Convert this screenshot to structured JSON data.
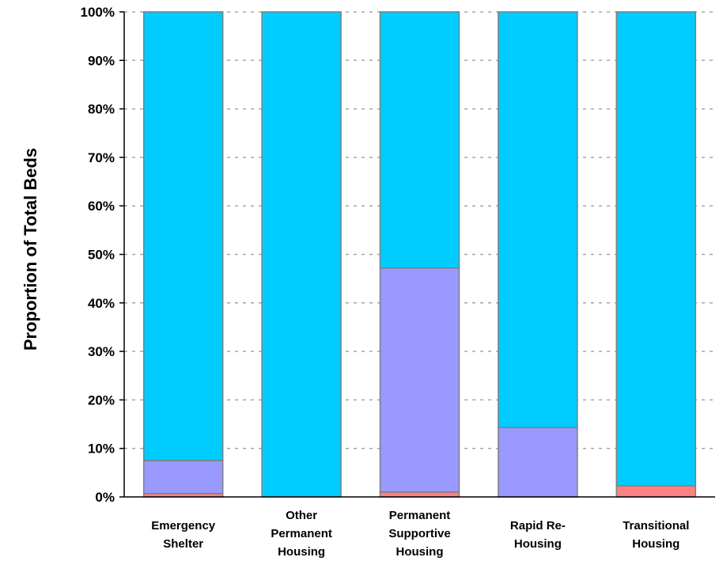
{
  "chart_data": {
    "type": "bar",
    "stacked": true,
    "percent_stacked": true,
    "ylabel": "Proportion of Total Beds",
    "xlabel": "",
    "ylim": [
      0,
      100
    ],
    "yticks": [
      0,
      10,
      20,
      30,
      40,
      50,
      60,
      70,
      80,
      90,
      100
    ],
    "ytick_labels": [
      "0%",
      "10%",
      "20%",
      "30%",
      "40%",
      "50%",
      "60%",
      "70%",
      "80%",
      "90%",
      "100%"
    ],
    "grid": "horizontal-dashed",
    "categories": [
      [
        "Emergency",
        "Shelter"
      ],
      [
        "Other",
        "Permanent",
        "Housing"
      ],
      [
        "Permanent",
        "Supportive",
        "Housing"
      ],
      [
        "Rapid Re-",
        "Housing"
      ],
      [
        "Transitional",
        "Housing"
      ]
    ],
    "series": [
      {
        "values": [
          0.7,
          0,
          1.0,
          0,
          2.3
        ],
        "color": "#ff8080"
      },
      {
        "values": [
          6.8,
          0,
          46.2,
          14.3,
          0
        ],
        "color": "#9999ff"
      },
      {
        "values": [
          92.5,
          100,
          52.8,
          85.7,
          97.7
        ],
        "color": "#00ccff"
      }
    ]
  }
}
